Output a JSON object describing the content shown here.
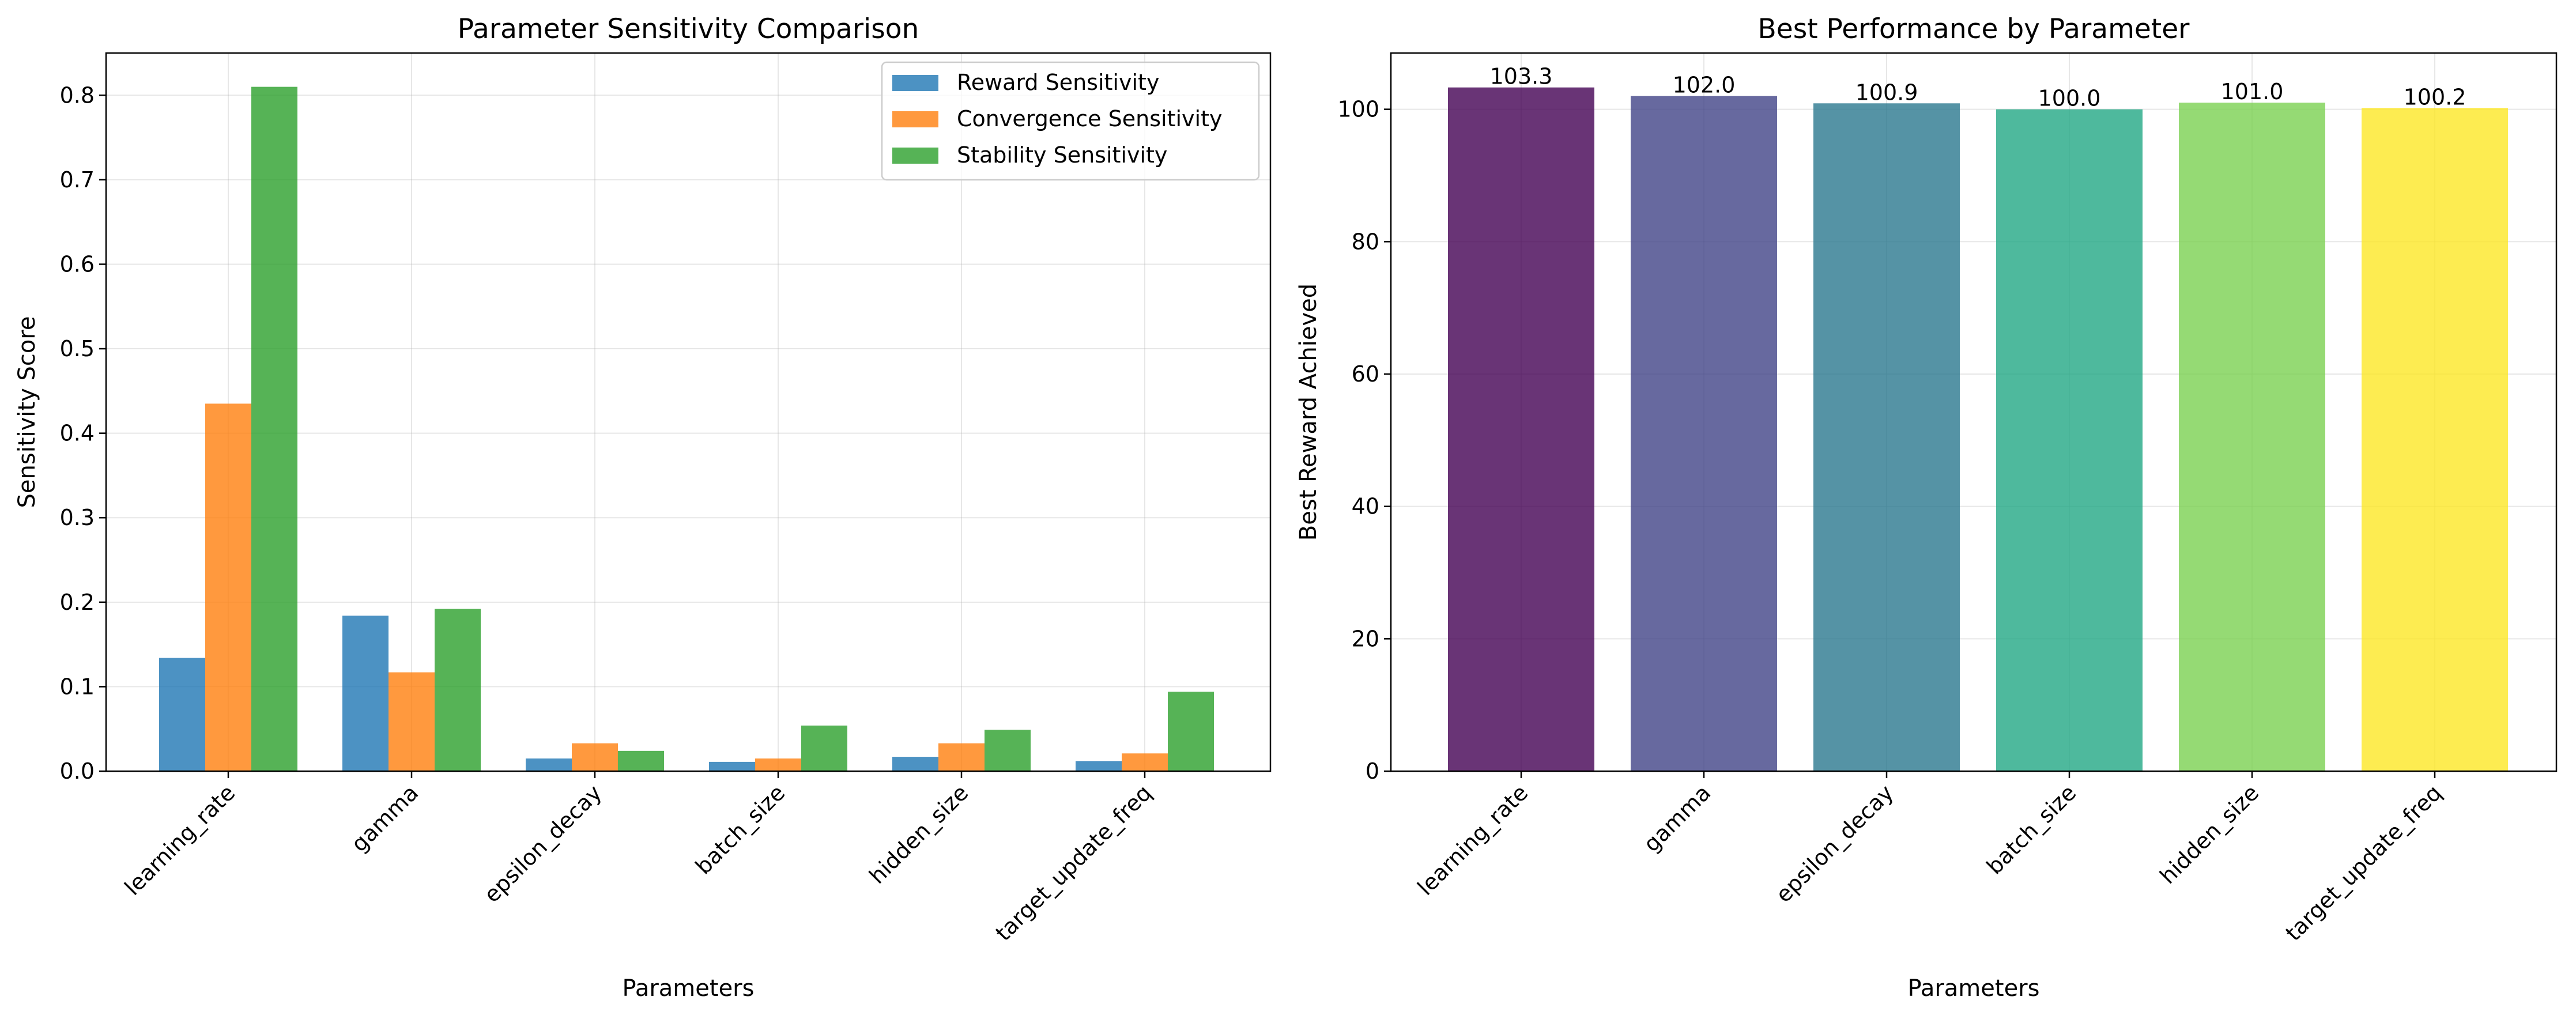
{
  "chart_data": [
    {
      "type": "bar",
      "title": "Parameter Sensitivity Comparison",
      "xlabel": "Parameters",
      "ylabel": "Sensitivity Score",
      "categories": [
        "learning_rate",
        "gamma",
        "epsilon_decay",
        "batch_size",
        "hidden_size",
        "target_update_freq"
      ],
      "series": [
        {
          "name": "Reward Sensitivity",
          "color": "#1f77b4",
          "values": [
            0.134,
            0.184,
            0.015,
            0.011,
            0.017,
            0.012
          ]
        },
        {
          "name": "Convergence Sensitivity",
          "color": "#ff7f0e",
          "values": [
            0.435,
            0.117,
            0.033,
            0.015,
            0.033,
            0.021
          ]
        },
        {
          "name": "Stability Sensitivity",
          "color": "#2ca02c",
          "values": [
            0.81,
            0.192,
            0.024,
            0.054,
            0.049,
            0.094
          ]
        }
      ],
      "ylim": [
        0,
        0.85
      ],
      "yticks": [
        0.0,
        0.1,
        0.2,
        0.3,
        0.4,
        0.5,
        0.6,
        0.7,
        0.8
      ],
      "ytick_labels": [
        "0.0",
        "0.1",
        "0.2",
        "0.3",
        "0.4",
        "0.5",
        "0.6",
        "0.7",
        "0.8"
      ],
      "grid": true,
      "legend": "top-right",
      "bar_alpha": 0.8
    },
    {
      "type": "bar",
      "title": "Best Performance by Parameter",
      "xlabel": "Parameters",
      "ylabel": "Best Reward Achieved",
      "categories": [
        "learning_rate",
        "gamma",
        "epsilon_decay",
        "batch_size",
        "hidden_size",
        "target_update_freq"
      ],
      "values": [
        103.3,
        102.0,
        100.9,
        100.0,
        101.0,
        100.2
      ],
      "value_labels": [
        "103.3",
        "102.0",
        "100.9",
        "100.0",
        "101.0",
        "100.2"
      ],
      "colors": [
        "#440154",
        "#414487",
        "#2a788e",
        "#22a884",
        "#7ad151",
        "#fde725"
      ],
      "ylim": [
        0,
        108.5
      ],
      "yticks": [
        0,
        20,
        40,
        60,
        80,
        100
      ],
      "ytick_labels": [
        "0",
        "20",
        "40",
        "60",
        "80",
        "100"
      ],
      "grid": true,
      "bar_alpha": 0.8
    }
  ]
}
